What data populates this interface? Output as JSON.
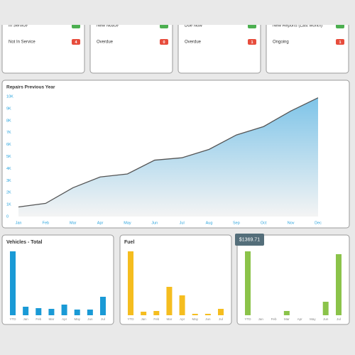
{
  "top_cards": [
    {
      "cut_label": "In Service",
      "label": "Not In Service",
      "badge": 4
    },
    {
      "cut_label": "New Notice",
      "label": "Overdue",
      "badge": 0
    },
    {
      "cut_label": "Due Now",
      "label": "Overdue",
      "badge": 1
    },
    {
      "cut_label": "New Reports (Last Month)",
      "label": "Ongoing",
      "badge": 1
    }
  ],
  "chart_data": [
    {
      "type": "area",
      "title": "Repairs Previous Year",
      "categories": [
        "Jan",
        "Feb",
        "Mar",
        "Apr",
        "May",
        "Jun",
        "Jul",
        "Aug",
        "Sep",
        "Oct",
        "Nov",
        "Dec"
      ],
      "values": [
        800,
        1100,
        2400,
        3300,
        3550,
        4700,
        4900,
        5600,
        6800,
        7500,
        8800,
        9900
      ],
      "color": "#7ec4e8",
      "line_color": "#555555",
      "ylim": [
        0,
        10000
      ],
      "yticks": [
        0,
        {
          "value": 1000,
          "label": "1K"
        },
        {
          "value": 2000,
          "label": "2K"
        },
        {
          "value": 3000,
          "label": "3K"
        },
        {
          "value": 4000,
          "label": "4K"
        },
        {
          "value": 5000,
          "label": "5K"
        },
        {
          "value": 6000,
          "label": "6K"
        },
        {
          "value": 7000,
          "label": "7K"
        },
        {
          "value": 8000,
          "label": "8K"
        },
        {
          "value": 9000,
          "label": "9K"
        },
        {
          "value": 10000,
          "label": "10K"
        }
      ]
    },
    {
      "type": "bar",
      "title": "Vehicles - Total",
      "categories": [
        "YTD",
        "Jan",
        "Feb",
        "Mar",
        "Apr",
        "May",
        "Jun",
        "Jul"
      ],
      "values": [
        90,
        12,
        10,
        9,
        15,
        8,
        8,
        26
      ],
      "color": "#1a9ad6",
      "ylim": [
        0,
        100
      ]
    },
    {
      "type": "bar",
      "title": "Fuel",
      "categories": [
        "YTD",
        "Jan",
        "Feb",
        "Mar",
        "Apr",
        "May",
        "Jun",
        "Jul"
      ],
      "values": [
        90,
        5,
        6,
        40,
        28,
        2,
        2,
        9
      ],
      "color": "#f5bd1f",
      "ylim": [
        0,
        100
      ]
    },
    {
      "type": "bar",
      "tooltip": "$1369.71",
      "categories": [
        "YTD",
        "Jan",
        "Feb",
        "Mar",
        "Apr",
        "May",
        "Jun",
        "Jul"
      ],
      "values": [
        90,
        0,
        0,
        6,
        0,
        0,
        19,
        86
      ],
      "color": "#8bc34a",
      "ylim": [
        0,
        100
      ]
    }
  ]
}
